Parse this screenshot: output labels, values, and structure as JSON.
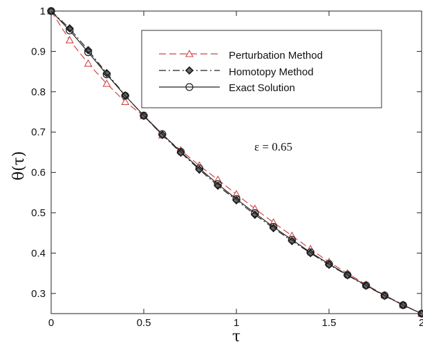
{
  "chart_data": {
    "type": "line",
    "xlabel": "τ",
    "ylabel": "θ(τ)",
    "xlim": [
      0,
      2
    ],
    "ylim": [
      0.25,
      1.0
    ],
    "xticks": [
      0,
      0.5,
      1,
      1.5,
      2
    ],
    "xtick_labels": [
      "0",
      "0.5",
      "1",
      "1.5",
      "2"
    ],
    "yticks": [
      0.3,
      0.4,
      0.5,
      0.6,
      0.7,
      0.8,
      0.9,
      1.0
    ],
    "ytick_labels": [
      "0.3",
      "0.4",
      "0.5",
      "0.6",
      "0.7",
      "0.8",
      "0.9",
      "1"
    ],
    "grid": false,
    "legend_position": "top-right",
    "annotation": "ε = 0.65",
    "x": [
      0,
      0.1,
      0.2,
      0.3,
      0.4,
      0.5,
      0.6,
      0.7,
      0.8,
      0.9,
      1.0,
      1.1,
      1.2,
      1.3,
      1.4,
      1.5,
      1.6,
      1.7,
      1.8,
      1.9,
      2.0
    ],
    "series": [
      {
        "name": "Perturbation Method",
        "color": "#cc4444",
        "marker": "triangle",
        "line_style": "dashed",
        "values": [
          1.0,
          0.928,
          0.87,
          0.82,
          0.775,
          0.74,
          0.692,
          0.655,
          0.617,
          0.582,
          0.546,
          0.51,
          0.476,
          0.443,
          0.41,
          0.378,
          0.35,
          0.322,
          0.296,
          0.272,
          0.25
        ]
      },
      {
        "name": "Homotopy Method",
        "color": "#222222",
        "marker": "diamond",
        "line_style": "dash-dot",
        "values": [
          1.0,
          0.957,
          0.903,
          0.846,
          0.791,
          0.74,
          0.693,
          0.649,
          0.607,
          0.567,
          0.531,
          0.495,
          0.462,
          0.43,
          0.4,
          0.371,
          0.345,
          0.319,
          0.294,
          0.271,
          0.25
        ]
      },
      {
        "name": "Exact Solution",
        "color": "#222222",
        "marker": "circle",
        "line_style": "solid",
        "values": [
          1.0,
          0.952,
          0.898,
          0.843,
          0.79,
          0.741,
          0.695,
          0.651,
          0.61,
          0.571,
          0.534,
          0.499,
          0.465,
          0.433,
          0.402,
          0.373,
          0.346,
          0.32,
          0.295,
          0.271,
          0.25
        ]
      }
    ]
  }
}
